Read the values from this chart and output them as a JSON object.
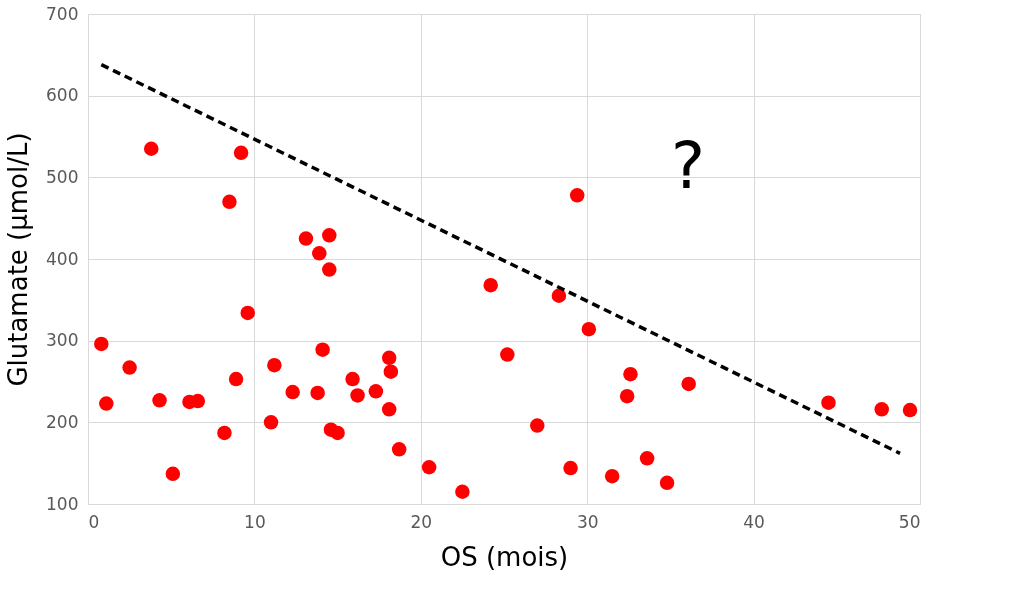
{
  "chart_data": {
    "type": "scatter",
    "xlabel": "OS (mois)",
    "ylabel": "Glutamate (µmol/L)",
    "xlim": [
      0,
      50
    ],
    "xticks": [
      0,
      10,
      20,
      30,
      40,
      50
    ],
    "ylim": [
      100,
      700
    ],
    "yticks": [
      100,
      200,
      300,
      400,
      500,
      600,
      700
    ],
    "grid": true,
    "annotations": [
      "?"
    ],
    "series": [
      {
        "color": "#ff0000",
        "marker": "circle",
        "x": [
          0.8,
          1.1,
          2.5,
          3.8,
          4.3,
          5.1,
          6.1,
          6.6,
          8.2,
          8.5,
          8.9,
          9.2,
          9.6,
          11.0,
          11.2,
          12.3,
          13.1,
          13.8,
          13.9,
          14.1,
          14.5,
          14.5,
          14.6,
          15.0,
          15.9,
          16.2,
          17.3,
          18.1,
          18.2,
          18.1,
          18.7,
          20.5,
          22.5,
          24.2,
          25.2,
          27.0,
          28.3,
          29.0,
          29.4,
          30.1,
          31.5,
          32.4,
          32.6,
          33.6,
          34.8,
          36.1,
          44.5,
          47.7,
          49.4
        ],
        "values": [
          296,
          223,
          267,
          535,
          227,
          137,
          225,
          226,
          187,
          470,
          253,
          530,
          334,
          200,
          270,
          237,
          425,
          236,
          407,
          289,
          429,
          387,
          191,
          187,
          253,
          233,
          238,
          279,
          262,
          216,
          167,
          145,
          115,
          368,
          283,
          196,
          355,
          144,
          478,
          314,
          134,
          232,
          259,
          156,
          126,
          247,
          224,
          216,
          215
        ]
      },
      {
        "type": "line",
        "color": "#000000",
        "line_style": "dashed",
        "marker": "none",
        "x": [
          0.8,
          48.8
        ],
        "values": [
          638,
          162
        ]
      }
    ]
  }
}
